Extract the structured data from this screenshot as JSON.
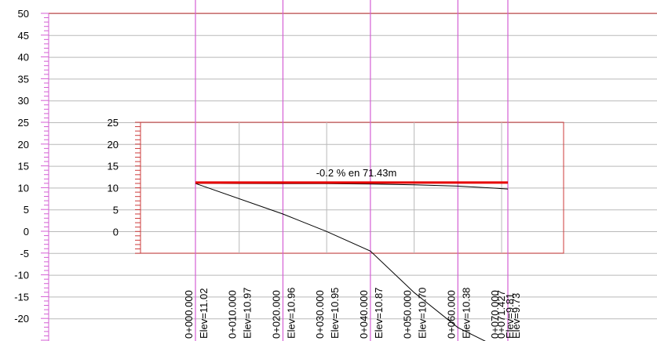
{
  "view": {
    "background": "#ffffff",
    "frame_color": "#cc3b3b",
    "grid_color": "#b9b9b9",
    "station_line_color": "#d45fd4",
    "grade_line_color": "#e60000",
    "ground_line_color": "#000000"
  },
  "chart_data": {
    "type": "line",
    "y_axis_outer": {
      "ticks": [
        "50",
        "45",
        "40",
        "35",
        "30",
        "25",
        "20",
        "15",
        "10",
        "5",
        "0",
        "-5",
        "-10",
        "-15",
        "-20"
      ],
      "ylim": [
        -25,
        50
      ]
    },
    "y_axis_inner": {
      "ticks": [
        "25",
        "20",
        "15",
        "10",
        "5",
        "0"
      ],
      "ylim": [
        -5,
        25
      ]
    },
    "stations": [
      {
        "station": "0+000.000",
        "elev_label": "Elev=11.02",
        "x": 0
      },
      {
        "station": "0+010.000",
        "elev_label": "Elev=10.97",
        "x": 10
      },
      {
        "station": "0+020.000",
        "elev_label": "Elev=10.96",
        "x": 20
      },
      {
        "station": "0+030.000",
        "elev_label": "Elev=10.95",
        "x": 30
      },
      {
        "station": "0+040.000",
        "elev_label": "Elev=10.87",
        "x": 40
      },
      {
        "station": "0+050.000",
        "elev_label": "Elev=10.70",
        "x": 50
      },
      {
        "station": "0+060.000",
        "elev_label": "Elev=10.38",
        "x": 60
      },
      {
        "station": "0+070.000",
        "elev_label": "Elev=9.81",
        "x": 70
      },
      {
        "station": "0+071.427",
        "elev_label": "Elev=9.73",
        "x": 71.427
      }
    ],
    "series": [
      {
        "values_x": [
          0,
          10,
          20,
          30,
          40,
          50,
          60,
          70,
          71.427
        ],
        "values_y": [
          11.02,
          10.97,
          10.96,
          10.95,
          10.87,
          10.7,
          10.38,
          9.81,
          9.73
        ]
      },
      {
        "values_x": [
          0,
          20,
          30,
          40,
          50,
          60,
          70
        ],
        "values_y": [
          11,
          4,
          0,
          -4.5,
          -14,
          -22,
          -27
        ]
      },
      {
        "values_x": [
          0,
          71.43
        ],
        "values_y": [
          11.2,
          11.2
        ]
      }
    ],
    "annotations": [
      "-0.2 % en 71.43m"
    ],
    "xlim": [
      0,
      71.43
    ]
  }
}
